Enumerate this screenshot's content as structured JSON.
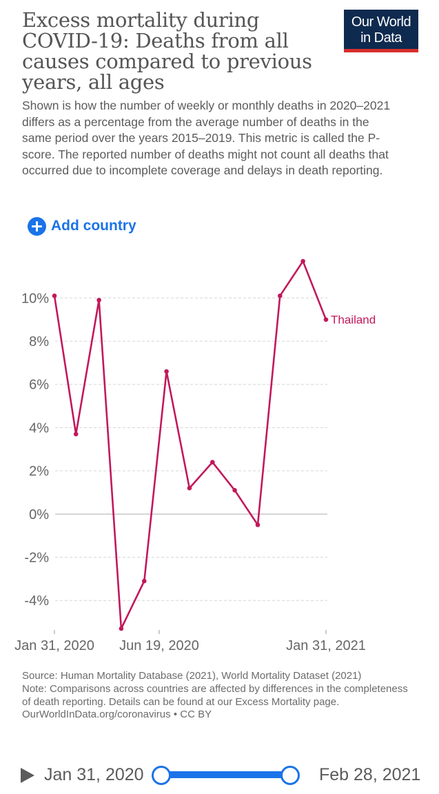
{
  "header": {
    "title": "Excess mortality during COVID-19: Deaths from all causes compared to previous years, all ages",
    "subtitle": "Shown is how the number of weekly or monthly deaths in 2020–2021 differs as a percentage from the average number of deaths in the same period over the years 2015–2019. This metric is called the P-score. The reported number of deaths might not count all deaths that occurred due to incomplete coverage and delays in death reporting.",
    "logo_line1": "Our World",
    "logo_line2": "in Data"
  },
  "controls": {
    "add_country_label": "Add country"
  },
  "chart_data": {
    "type": "line",
    "x": [
      "2020-01-31",
      "2020-02-29",
      "2020-03-31",
      "2020-04-30",
      "2020-05-31",
      "2020-06-30",
      "2020-07-31",
      "2020-08-31",
      "2020-09-30",
      "2020-10-31",
      "2020-11-30",
      "2020-12-31",
      "2021-01-31"
    ],
    "series": [
      {
        "name": "Thailand",
        "color": "#c2185b",
        "values": [
          10.1,
          3.7,
          9.9,
          -5.3,
          -3.1,
          6.6,
          1.2,
          2.4,
          1.1,
          -0.5,
          10.1,
          11.7,
          9.0
        ]
      }
    ],
    "ylim": [
      -5.3,
      11.7
    ],
    "yticks": [
      -4,
      -2,
      0,
      2,
      4,
      6,
      8,
      10
    ],
    "ytick_labels": [
      "-4%",
      "-2%",
      "0%",
      "2%",
      "4%",
      "6%",
      "8%",
      "10%"
    ],
    "xtick_labels": [
      "Jan 31, 2020",
      "Jun 19, 2020",
      "Jan 31, 2021"
    ],
    "grid": true
  },
  "footer": {
    "source": "Source: Human Mortality Database (2021), World Mortality Dataset (2021)",
    "note": "Note: Comparisons across countries are affected by differences in the completeness of death reporting. Details can be found at our Excess Mortality page.",
    "credit": "OurWorldInData.org/coronavirus • CC BY"
  },
  "timeline": {
    "start_label": "Jan 31, 2020",
    "end_label": "Feb 28, 2021"
  }
}
